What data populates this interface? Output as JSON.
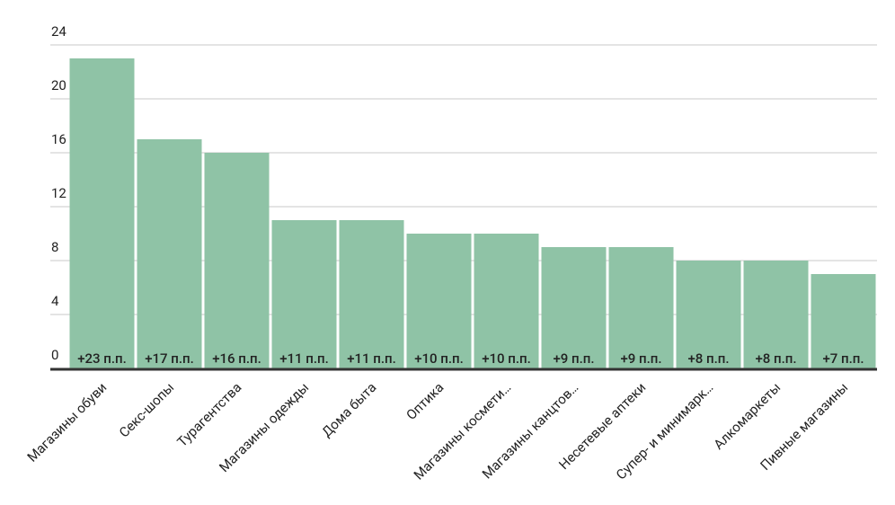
{
  "chart_data": {
    "type": "bar",
    "categories": [
      "Магазины обуви",
      "Секс-шопы",
      "Турагентства",
      "Магазины одежды",
      "Дома быта",
      "Оптика",
      "Магазины космети…",
      "Магазины канцтов…",
      "Несетевые аптеки",
      "Супер- и минимарк…",
      "Алкомаркеты",
      "Пивные магазины"
    ],
    "values": [
      23,
      17,
      16,
      11,
      11,
      10,
      10,
      9,
      9,
      8,
      8,
      7
    ],
    "value_labels": [
      "+23 п.п.",
      "+17 п.п.",
      "+16 п.п.",
      "+11 п.п.",
      "+11 п.п.",
      "+10 п.п.",
      "+10 п.п.",
      "+9 п.п.",
      "+9 п.п.",
      "+8 п.п.",
      "+8 п.п.",
      "+7 п.п."
    ],
    "color": "#8fc3a6",
    "ylim": [
      0,
      24
    ],
    "yticks": [
      0,
      4,
      8,
      12,
      16,
      20,
      24
    ],
    "grid": true
  }
}
